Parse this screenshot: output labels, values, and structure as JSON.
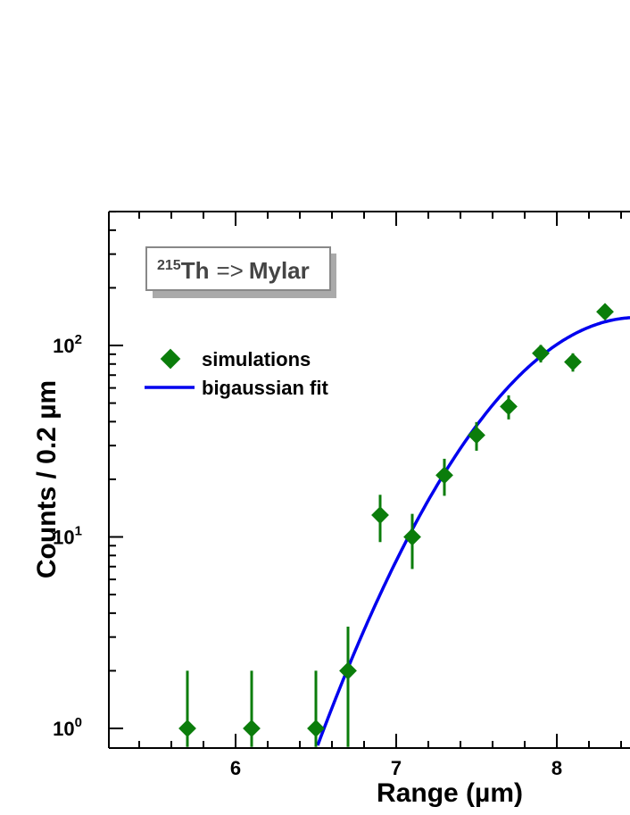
{
  "chart_data": {
    "type": "scatter",
    "title_box": {
      "isotope_mass": "215",
      "isotope_symbol": "Th",
      "arrow": "=>",
      "target": "Mylar"
    },
    "xlabel": "Range (µm)",
    "ylabel": "Counts / 0.2 µm",
    "xlim": [
      5.2,
      8.45
    ],
    "ylim": [
      0.8,
      600
    ],
    "y_scale": "log",
    "x_ticks": [
      {
        "value": 6,
        "label": "6"
      },
      {
        "value": 7,
        "label": "7"
      },
      {
        "value": 8,
        "label": "8"
      }
    ],
    "y_ticks": [
      {
        "value": 1,
        "base": "10",
        "exp": "0"
      },
      {
        "value": 10,
        "base": "10",
        "exp": "1"
      },
      {
        "value": 100,
        "base": "10",
        "exp": "2"
      }
    ],
    "legend": {
      "placement": "upper-left",
      "entries": [
        "simulations",
        "bigaussian fit"
      ]
    },
    "series": [
      {
        "name": "simulations",
        "color": "#0b7d0b",
        "marker": "diamond",
        "points": [
          {
            "x": 5.7,
            "y": 1,
            "err_low": 0.8,
            "err_high": 2.0
          },
          {
            "x": 6.1,
            "y": 1,
            "err_low": 0.8,
            "err_high": 2.0
          },
          {
            "x": 6.5,
            "y": 1,
            "err_low": 0.8,
            "err_high": 2.0
          },
          {
            "x": 6.7,
            "y": 2,
            "err_low": 0.8,
            "err_high": 3.4
          },
          {
            "x": 6.9,
            "y": 13,
            "err_low": 9.4,
            "err_high": 16.6
          },
          {
            "x": 7.1,
            "y": 10,
            "err_low": 6.8,
            "err_high": 13.2
          },
          {
            "x": 7.3,
            "y": 21,
            "err_low": 16.4,
            "err_high": 25.6
          },
          {
            "x": 7.5,
            "y": 34,
            "err_low": 28.2,
            "err_high": 39.8
          },
          {
            "x": 7.7,
            "y": 48,
            "err_low": 41.1,
            "err_high": 54.9
          },
          {
            "x": 7.9,
            "y": 91,
            "err_low": 81.5,
            "err_high": 100.5
          },
          {
            "x": 8.1,
            "y": 82,
            "err_low": 73.0,
            "err_high": 91.0
          },
          {
            "x": 8.3,
            "y": 150,
            "err_low": 137.8,
            "err_high": 162.2
          }
        ]
      },
      {
        "name": "bigaussian fit",
        "color": "#0000ee",
        "curve": {
          "amplitude": 140,
          "center": 8.5,
          "sigma_left": 0.62
        }
      }
    ]
  }
}
